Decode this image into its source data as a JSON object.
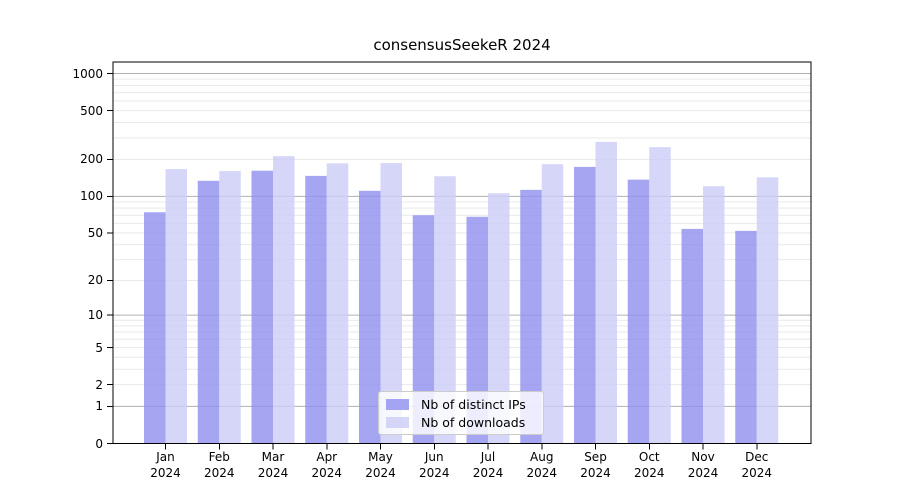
{
  "figure": {
    "background": "#ffffff"
  },
  "chart_data": {
    "type": "bar",
    "title": "consensusSeekeR 2024",
    "categories": [
      "Jan",
      "Feb",
      "Mar",
      "Apr",
      "May",
      "Jun",
      "Jul",
      "Aug",
      "Sep",
      "Oct",
      "Nov",
      "Dec"
    ],
    "category_year": "2024",
    "series": [
      {
        "name": "Nb of distinct IPs",
        "color": "#9191ef",
        "opacity": 0.82,
        "values": [
          74,
          134,
          162,
          147,
          111,
          70,
          68,
          113,
          174,
          137,
          54,
          52
        ]
      },
      {
        "name": "Nb of downloads",
        "color": "#cdcdf6",
        "opacity": 0.82,
        "values": [
          167,
          161,
          213,
          186,
          187,
          146,
          106,
          183,
          278,
          252,
          121,
          143
        ]
      }
    ],
    "yscale": "log10(value+1)",
    "ylim": [
      0,
      1240
    ],
    "yticks": [
      0,
      1,
      2,
      5,
      10,
      20,
      50,
      100,
      200,
      500,
      1000
    ],
    "major_gridlines": [
      1,
      10,
      100,
      1000
    ],
    "minor_gridlines": [
      2,
      3,
      4,
      5,
      6,
      7,
      8,
      9,
      20,
      30,
      40,
      50,
      60,
      70,
      80,
      90,
      200,
      300,
      400,
      500,
      600,
      700,
      800,
      900
    ],
    "grid": true,
    "legend_position": "lower center"
  },
  "colors": {
    "grid_major": "#b0b0b0",
    "grid_minor": "#e9e9e9",
    "axis": "#000000",
    "tick": "#000000",
    "legend_border": "#cccccc",
    "text": "#000000"
  }
}
